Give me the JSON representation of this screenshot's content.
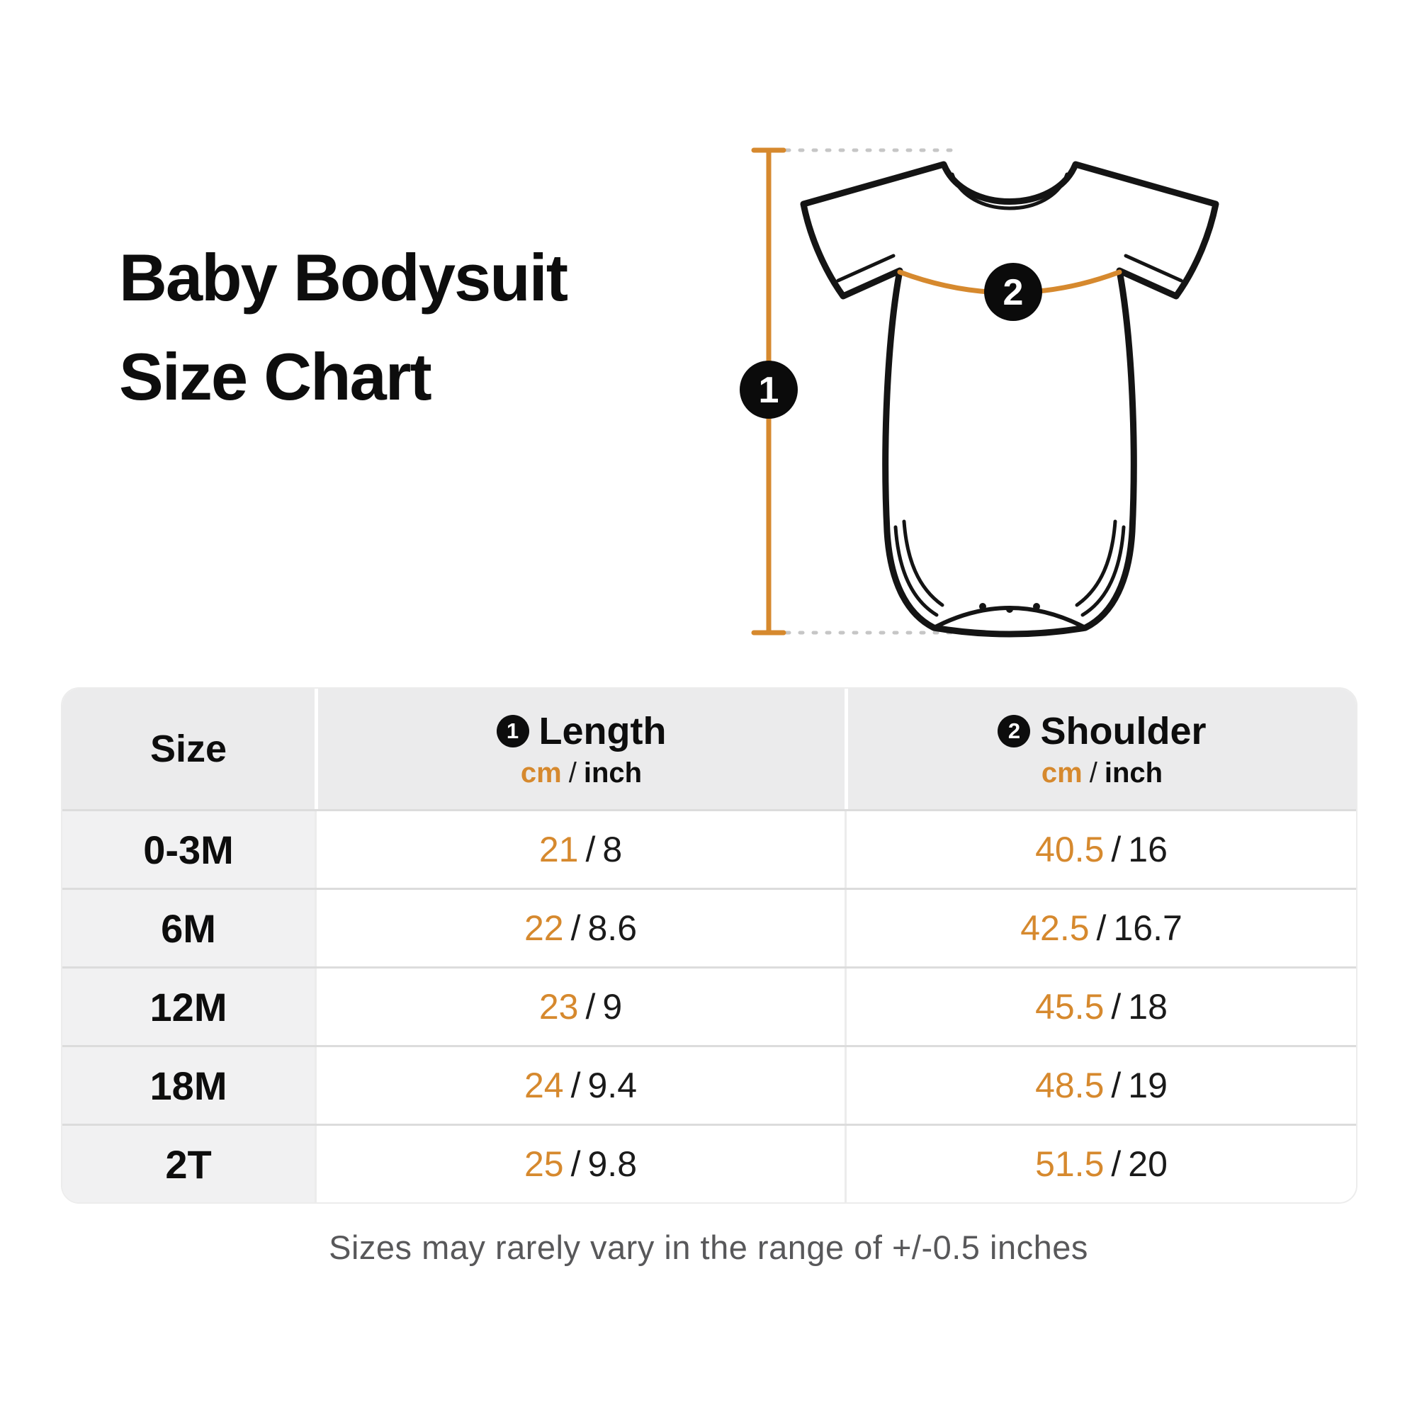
{
  "accent_color": "#d6892e",
  "title": {
    "line1": "Baby Bodysuit",
    "line2": "Size Chart"
  },
  "diagram": {
    "length_marker": "1",
    "shoulder_marker": "2"
  },
  "table": {
    "size_header": "Size",
    "length_header": {
      "marker": "1",
      "label": "Length",
      "unit_cm": "cm",
      "unit_separator": "/",
      "unit_inch": "inch"
    },
    "shoulder_header": {
      "marker": "2",
      "label": "Shoulder",
      "unit_cm": "cm",
      "unit_separator": "/",
      "unit_inch": "inch"
    },
    "value_separator": "/",
    "rows": [
      {
        "size": "0-3M",
        "length_cm": "21",
        "length_inch": "8",
        "shoulder_cm": "40.5",
        "shoulder_inch": "16"
      },
      {
        "size": "6M",
        "length_cm": "22",
        "length_inch": "8.6",
        "shoulder_cm": "42.5",
        "shoulder_inch": "16.7"
      },
      {
        "size": "12M",
        "length_cm": "23",
        "length_inch": "9",
        "shoulder_cm": "45.5",
        "shoulder_inch": "18"
      },
      {
        "size": "18M",
        "length_cm": "24",
        "length_inch": "9.4",
        "shoulder_cm": "48.5",
        "shoulder_inch": "19"
      },
      {
        "size": "2T",
        "length_cm": "25",
        "length_inch": "9.8",
        "shoulder_cm": "51.5",
        "shoulder_inch": "20"
      }
    ]
  },
  "footer": {
    "note": "Sizes may rarely vary in the range of +/-0.5 inches"
  }
}
